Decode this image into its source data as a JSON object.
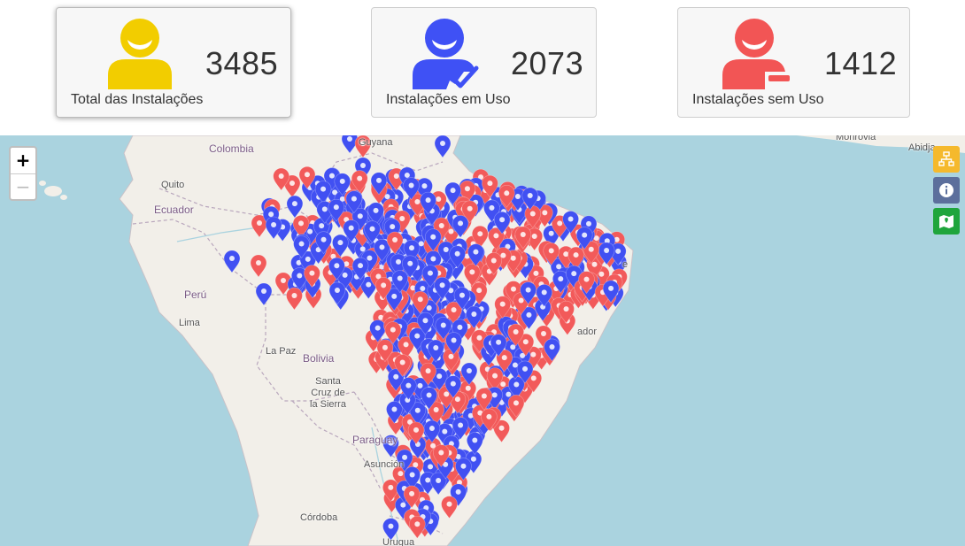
{
  "stats": {
    "total": {
      "value": "3485",
      "label": "Total das Instalações",
      "color": "#f2cd00",
      "icon": "user-icon"
    },
    "in_use": {
      "value": "2073",
      "label": "Instalações em Uso",
      "color": "#3f51f5",
      "icon": "user-check-icon"
    },
    "not_in_use": {
      "value": "1412",
      "label": "Instalações sem Uso",
      "color": "#f25555",
      "icon": "user-minus-icon"
    }
  },
  "map": {
    "zoom_in": "+",
    "zoom_out": "−",
    "places": {
      "colombia": "Colombia",
      "guyana": "Guyana",
      "quito": "Quito",
      "ecuador": "Ecuador",
      "peru": "Perú",
      "lima": "Lima",
      "la_paz": "La Paz",
      "bolivia": "Bolivia",
      "santa_cruz": "Santa\nCruz de\nla Sierra",
      "paraguay": "Paraguay",
      "asuncion": "Asunción",
      "cordoba": "Córdoba",
      "uruguay": "Urugua",
      "monrovia": "Monrovia",
      "abidjan": "Abidja",
      "salvador": "ador",
      "recife": "e"
    },
    "marker_colors": {
      "in_use": "#4150f2",
      "not_in_use": "#f25a5a"
    },
    "tools": [
      {
        "icon": "sitemap-icon",
        "color": "#f5b92c"
      },
      {
        "icon": "info-icon",
        "color": "#5c6f9c"
      },
      {
        "icon": "map-marker-icon",
        "color": "#1fa53c"
      }
    ]
  }
}
